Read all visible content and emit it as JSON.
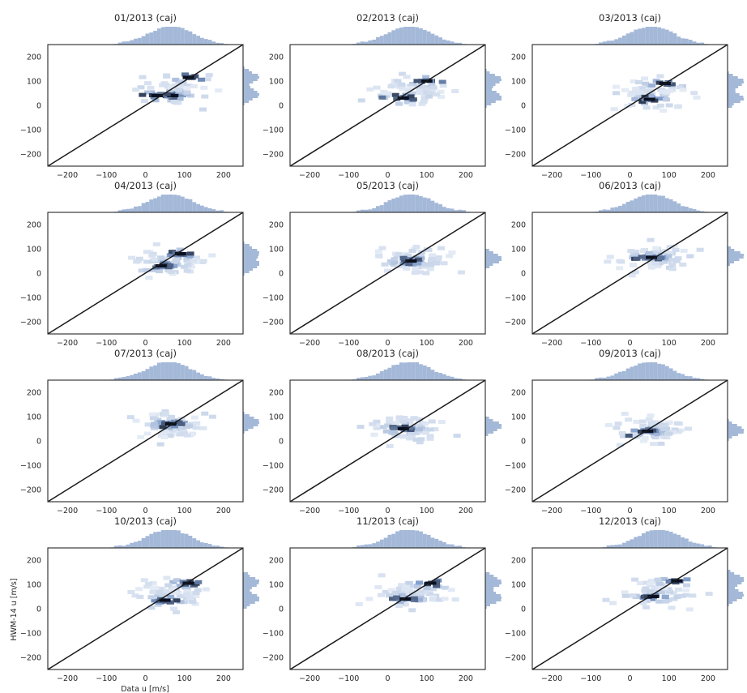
{
  "figure": {
    "xlabel": "Data u [m/s]",
    "ylabel": "HWM-14 u [m/s]"
  },
  "colors": {
    "hist": "#a4b8d8",
    "hex_light": "#eef3fa",
    "hex_mid": "#7d9ac8",
    "hex_dark": "#0a1020",
    "line": "#1a1a1a",
    "axes": "#262626"
  },
  "chart_data": [
    {
      "type": "jointplot-hexbin",
      "title": "01/2013 (caj)",
      "xlim": [
        -250,
        250
      ],
      "ylim": [
        -250,
        250
      ],
      "xticks": [
        -200,
        -100,
        0,
        100,
        200
      ],
      "yticks": [
        -200,
        -100,
        0,
        100,
        200
      ],
      "reference_line": "y = x",
      "cluster": {
        "x_center": 70,
        "y_center": 60,
        "dense_points": [
          [
            70,
            40
          ],
          [
            110,
            115
          ],
          [
            30,
            40
          ]
        ]
      },
      "marginal_x_center": 60,
      "marginal_y_peaks": [
        40,
        110
      ]
    },
    {
      "type": "jointplot-hexbin",
      "title": "02/2013 (caj)",
      "xlim": [
        -250,
        250
      ],
      "ylim": [
        -250,
        250
      ],
      "xticks": [
        -200,
        -100,
        0,
        100,
        200
      ],
      "yticks": [
        -200,
        -100,
        0,
        100,
        200
      ],
      "reference_line": "y = x",
      "cluster": {
        "x_center": 60,
        "y_center": 60,
        "dense_points": [
          [
            40,
            30
          ],
          [
            100,
            100
          ]
        ]
      },
      "marginal_x_center": 50,
      "marginal_y_peaks": [
        30,
        100
      ]
    },
    {
      "type": "jointplot-hexbin",
      "title": "03/2013 (caj)",
      "xlim": [
        -250,
        250
      ],
      "ylim": [
        -250,
        250
      ],
      "xticks": [
        -200,
        -100,
        0,
        100,
        200
      ],
      "yticks": [
        -200,
        -100,
        0,
        100,
        200
      ],
      "reference_line": "y = x",
      "cluster": {
        "x_center": 60,
        "y_center": 50,
        "dense_points": [
          [
            50,
            25
          ],
          [
            90,
            90
          ]
        ]
      },
      "marginal_x_center": 50,
      "marginal_y_peaks": [
        25,
        90
      ]
    },
    {
      "type": "jointplot-hexbin",
      "title": "04/2013 (caj)",
      "xlim": [
        -250,
        250
      ],
      "ylim": [
        -250,
        250
      ],
      "xticks": [
        -200,
        -100,
        0,
        100,
        200
      ],
      "yticks": [
        -200,
        -100,
        0,
        100,
        200
      ],
      "reference_line": "y = x",
      "cluster": {
        "x_center": 60,
        "y_center": 50,
        "dense_points": [
          [
            40,
            30
          ],
          [
            90,
            80
          ]
        ]
      },
      "marginal_x_center": 60,
      "marginal_y_peaks": [
        30,
        80
      ]
    },
    {
      "type": "jointplot-hexbin",
      "title": "05/2013 (caj)",
      "xlim": [
        -250,
        250
      ],
      "ylim": [
        -250,
        250
      ],
      "xticks": [
        -200,
        -100,
        0,
        100,
        200
      ],
      "yticks": [
        -200,
        -100,
        0,
        100,
        200
      ],
      "reference_line": "y = x",
      "cluster": {
        "x_center": 60,
        "y_center": 55,
        "dense_points": [
          [
            60,
            50
          ]
        ]
      },
      "marginal_x_center": 55,
      "marginal_y_peaks": [
        55
      ]
    },
    {
      "type": "jointplot-hexbin",
      "title": "06/2013 (caj)",
      "xlim": [
        -250,
        250
      ],
      "ylim": [
        -250,
        250
      ],
      "xticks": [
        -200,
        -100,
        0,
        100,
        200
      ],
      "yticks": [
        -200,
        -100,
        0,
        100,
        200
      ],
      "reference_line": "y = x",
      "cluster": {
        "x_center": 55,
        "y_center": 60,
        "dense_points": [
          [
            55,
            65
          ]
        ]
      },
      "marginal_x_center": 50,
      "marginal_y_peaks": [
        65
      ]
    },
    {
      "type": "jointplot-hexbin",
      "title": "07/2013 (caj)",
      "xlim": [
        -250,
        250
      ],
      "ylim": [
        -250,
        250
      ],
      "xticks": [
        -200,
        -100,
        0,
        100,
        200
      ],
      "yticks": [
        -200,
        -100,
        0,
        100,
        200
      ],
      "reference_line": "y = x",
      "cluster": {
        "x_center": 60,
        "y_center": 60,
        "dense_points": [
          [
            65,
            70
          ]
        ]
      },
      "marginal_x_center": 55,
      "marginal_y_peaks": [
        70
      ]
    },
    {
      "type": "jointplot-hexbin",
      "title": "08/2013 (caj)",
      "xlim": [
        -250,
        250
      ],
      "ylim": [
        -250,
        250
      ],
      "xticks": [
        -200,
        -100,
        0,
        100,
        200
      ],
      "yticks": [
        -200,
        -100,
        0,
        100,
        200
      ],
      "reference_line": "y = x",
      "cluster": {
        "x_center": 50,
        "y_center": 50,
        "dense_points": [
          [
            40,
            50
          ]
        ]
      },
      "marginal_x_center": 50,
      "marginal_y_peaks": [
        55
      ]
    },
    {
      "type": "jointplot-hexbin",
      "title": "09/2013 (caj)",
      "xlim": [
        -250,
        250
      ],
      "ylim": [
        -250,
        250
      ],
      "xticks": [
        -200,
        -100,
        0,
        100,
        200
      ],
      "yticks": [
        -200,
        -100,
        0,
        100,
        200
      ],
      "reference_line": "y = x",
      "cluster": {
        "x_center": 50,
        "y_center": 45,
        "dense_points": [
          [
            45,
            40
          ]
        ]
      },
      "marginal_x_center": 45,
      "marginal_y_peaks": [
        40
      ]
    },
    {
      "type": "jointplot-hexbin",
      "title": "10/2013 (caj)",
      "xlim": [
        -250,
        250
      ],
      "ylim": [
        -250,
        250
      ],
      "xticks": [
        -200,
        -100,
        0,
        100,
        200
      ],
      "yticks": [
        -200,
        -100,
        0,
        100,
        200
      ],
      "reference_line": "y = x",
      "cluster": {
        "x_center": 60,
        "y_center": 60,
        "dense_points": [
          [
            50,
            35
          ],
          [
            110,
            105
          ]
        ]
      },
      "marginal_x_center": 55,
      "marginal_y_peaks": [
        35,
        105
      ]
    },
    {
      "type": "jointplot-hexbin",
      "title": "11/2013 (caj)",
      "xlim": [
        -250,
        250
      ],
      "ylim": [
        -250,
        250
      ],
      "xticks": [
        -200,
        -100,
        0,
        100,
        200
      ],
      "yticks": [
        -200,
        -100,
        0,
        100,
        200
      ],
      "reference_line": "y = x",
      "cluster": {
        "x_center": 60,
        "y_center": 60,
        "dense_points": [
          [
            45,
            40
          ],
          [
            110,
            105
          ]
        ]
      },
      "marginal_x_center": 50,
      "marginal_y_peaks": [
        40,
        105
      ]
    },
    {
      "type": "jointplot-hexbin",
      "title": "12/2013 (caj)",
      "xlim": [
        -250,
        250
      ],
      "ylim": [
        -250,
        250
      ],
      "xticks": [
        -200,
        -100,
        0,
        100,
        200
      ],
      "yticks": [
        -200,
        -100,
        0,
        100,
        200
      ],
      "reference_line": "y = x",
      "cluster": {
        "x_center": 75,
        "y_center": 70,
        "dense_points": [
          [
            60,
            50
          ],
          [
            120,
            115
          ]
        ]
      },
      "marginal_x_center": 70,
      "marginal_y_peaks": [
        50,
        115
      ]
    }
  ]
}
